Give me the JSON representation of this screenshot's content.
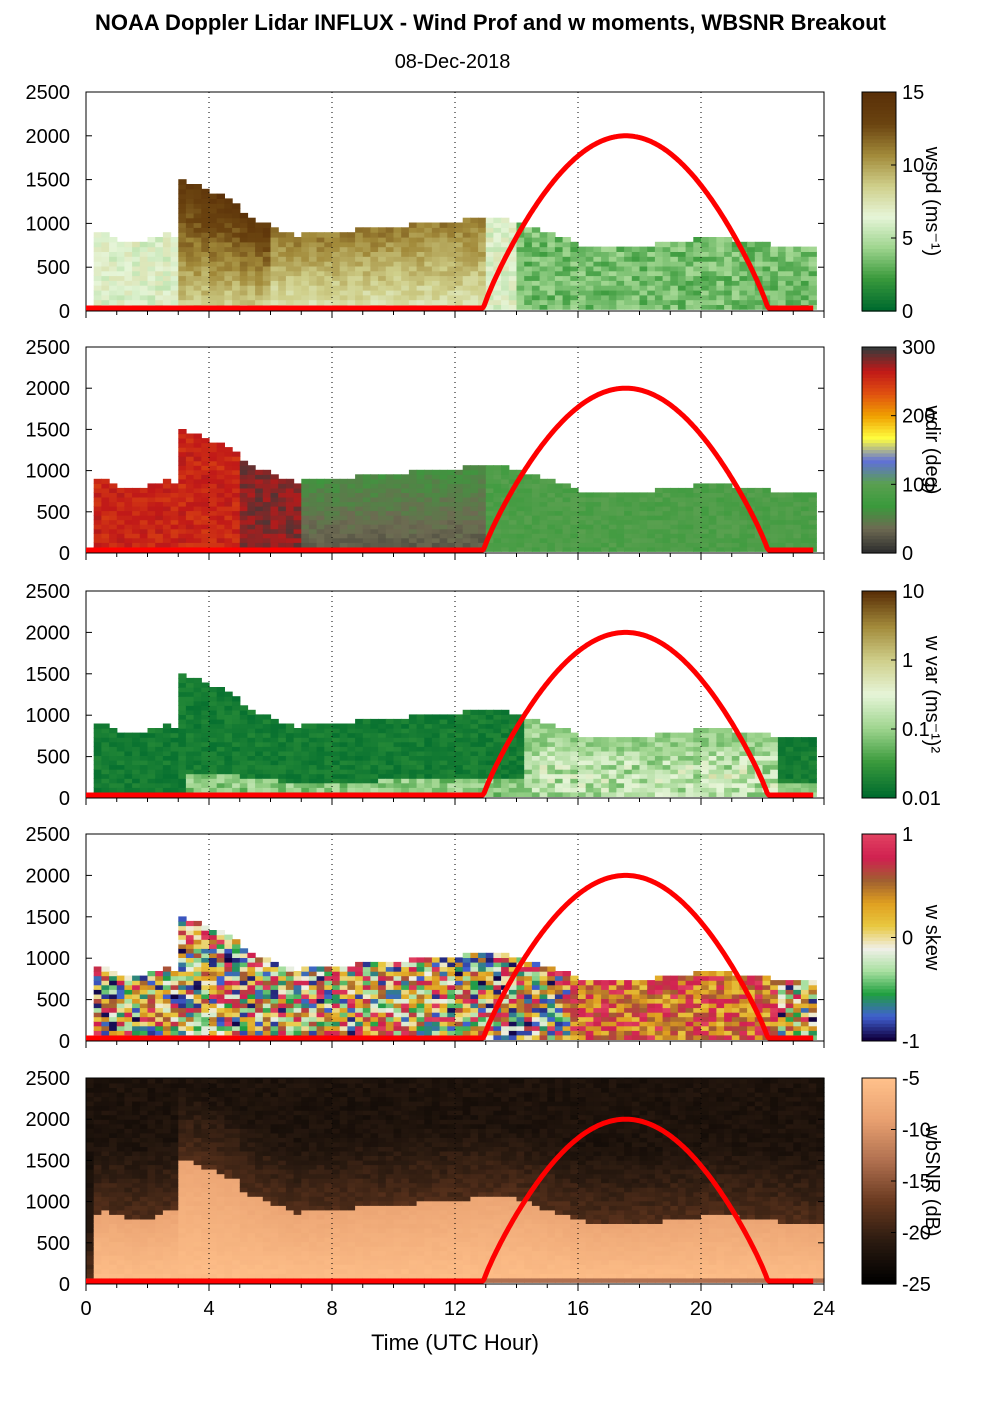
{
  "title": "NOAA Doppler Lidar INFLUX - Wind Prof and w moments, WBSNR Breakout",
  "date": "08-Dec-2018",
  "xlabel": "Time (UTC Hour)",
  "chart_data": [
    {
      "type": "heatmap",
      "colorbar_label": "wspd (ms⁻¹)",
      "colorbar_ticks": [
        "15",
        "10",
        "5",
        "0"
      ],
      "cmap": [
        "#006b2e",
        "#3a9a3c",
        "#9fd58f",
        "#e6f5d8",
        "#cfcf8a",
        "#a28a3a",
        "#6b4410",
        "#5a3008"
      ],
      "ylim": [
        0,
        2500
      ],
      "xlim": [
        0,
        24
      ],
      "yticks": [
        "2500",
        "2000",
        "1500",
        "1000",
        "500",
        "0"
      ]
    },
    {
      "type": "heatmap",
      "colorbar_label": "wdir (deg)",
      "colorbar_ticks": [
        "300",
        "200",
        "100",
        "0"
      ],
      "cmap": [
        "#303030",
        "#6d6a52",
        "#3a9a3c",
        "#5aa050",
        "#6070d8",
        "#ffff40",
        "#f0a000",
        "#e05010",
        "#c01818",
        "#3a3a3a"
      ],
      "ylim": [
        0,
        2500
      ],
      "xlim": [
        0,
        24
      ],
      "yticks": [
        "2500",
        "2000",
        "1500",
        "1000",
        "500",
        "0"
      ]
    },
    {
      "type": "heatmap",
      "colorbar_label": "w var (ms⁻¹)²",
      "colorbar_ticks": [
        "10",
        "1",
        "0.1",
        "0.01"
      ],
      "cmap": [
        "#006b2e",
        "#3a9a3c",
        "#9fd58f",
        "#e6f5d8",
        "#cfcf8a",
        "#a28a3a",
        "#5a3008"
      ],
      "ylim": [
        0,
        2500
      ],
      "xlim": [
        0,
        24
      ],
      "yticks": [
        "2500",
        "2000",
        "1500",
        "1000",
        "500",
        "0"
      ]
    },
    {
      "type": "heatmap",
      "colorbar_label": "w skew",
      "colorbar_ticks": [
        "1",
        "0",
        "-1"
      ],
      "cmap": [
        "#100040",
        "#4060d0",
        "#20a040",
        "#a8e0a0",
        "#f0f0e8",
        "#e8c840",
        "#e0a020",
        "#a06030",
        "#d02050",
        "#e04060"
      ],
      "ylim": [
        0,
        2500
      ],
      "xlim": [
        0,
        24
      ],
      "yticks": [
        "2500",
        "2000",
        "1500",
        "1000",
        "500",
        "0"
      ]
    },
    {
      "type": "heatmap",
      "colorbar_label": "wbSNR (dB)",
      "colorbar_ticks": [
        "-5",
        "-10",
        "-15",
        "-20",
        "-25"
      ],
      "cmap": [
        "#000000",
        "#2a1a10",
        "#6a3a20",
        "#b07050",
        "#e8a070",
        "#ffc08a"
      ],
      "ylim": [
        0,
        2500
      ],
      "xlim": [
        0,
        24
      ],
      "yticks": [
        "2500",
        "2000",
        "1500",
        "1000",
        "500",
        "0"
      ],
      "xticks": [
        "0",
        "4",
        "8",
        "12",
        "16",
        "20",
        "24"
      ]
    }
  ],
  "overlay": {
    "description_series": "solar elevation",
    "color": "#ff0000",
    "rise_hour": 12.9,
    "set_hour": 22.2,
    "peak_hour": 17.6,
    "peak_value": 2000
  }
}
